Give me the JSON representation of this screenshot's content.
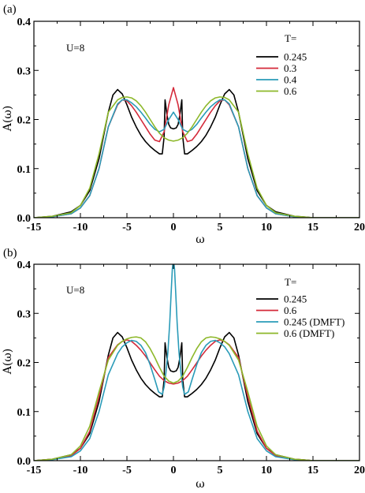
{
  "chart_data": [
    {
      "type": "line",
      "panel_label": "(a)",
      "annotation": "U=8",
      "legend_title": "T=",
      "legend_placement": "top-right",
      "xlabel": "ω",
      "ylabel": "A(ω)",
      "xlim": [
        -15,
        20
      ],
      "ylim": [
        0,
        0.4
      ],
      "x_ticks": [
        -15,
        -10,
        -5,
        0,
        5,
        10,
        15,
        20
      ],
      "y_ticks": [
        0.0,
        0.1,
        0.2,
        0.3,
        0.4
      ],
      "x_tick_labels": [
        "-15",
        "-10",
        "-5",
        "0",
        "5",
        "10",
        "15",
        "20"
      ],
      "y_tick_labels": [
        "0.0",
        "0.1",
        "0.2",
        "0.3",
        "0.4"
      ],
      "grid": false,
      "series": [
        {
          "name": "0.245",
          "color": "#000000",
          "x": [
            -15,
            -13,
            -11,
            -10,
            -9,
            -8,
            -7,
            -6.5,
            -6,
            -5.5,
            -5,
            -4.5,
            -4,
            -3.5,
            -3,
            -2.5,
            -2,
            -1.5,
            -1.2,
            -1,
            -0.9,
            -0.7,
            -0.5,
            -0.3,
            0,
            0.3,
            0.5,
            0.7,
            0.9,
            1,
            1.2,
            1.5,
            2,
            2.5,
            3,
            3.5,
            4,
            4.5,
            5,
            5.5,
            6,
            6.5,
            7,
            8,
            9,
            10,
            11,
            13,
            15,
            17,
            20
          ],
          "y": [
            0.0,
            0.003,
            0.012,
            0.025,
            0.055,
            0.12,
            0.215,
            0.25,
            0.261,
            0.252,
            0.23,
            0.205,
            0.185,
            0.168,
            0.155,
            0.145,
            0.137,
            0.13,
            0.13,
            0.165,
            0.24,
            0.21,
            0.19,
            0.183,
            0.181,
            0.183,
            0.19,
            0.21,
            0.24,
            0.165,
            0.13,
            0.13,
            0.137,
            0.145,
            0.155,
            0.168,
            0.185,
            0.205,
            0.23,
            0.252,
            0.261,
            0.25,
            0.215,
            0.12,
            0.055,
            0.025,
            0.012,
            0.003,
            0.0,
            0.0,
            0.0
          ]
        },
        {
          "name": "0.3",
          "color": "#d42a3a",
          "x": [
            -15,
            -13,
            -11,
            -10,
            -9,
            -8,
            -7,
            -6,
            -5.5,
            -5,
            -4.5,
            -4,
            -3.5,
            -3,
            -2.5,
            -2,
            -1.5,
            -1,
            -0.5,
            0,
            0.5,
            1,
            1.5,
            2,
            2.5,
            3,
            3.5,
            4,
            4.5,
            5,
            5.5,
            6,
            7,
            8,
            9,
            10,
            11,
            13,
            15,
            17,
            20
          ],
          "y": [
            0.0,
            0.002,
            0.008,
            0.02,
            0.045,
            0.1,
            0.185,
            0.23,
            0.24,
            0.238,
            0.228,
            0.215,
            0.2,
            0.185,
            0.17,
            0.158,
            0.155,
            0.175,
            0.23,
            0.265,
            0.23,
            0.175,
            0.155,
            0.158,
            0.17,
            0.185,
            0.2,
            0.215,
            0.228,
            0.238,
            0.24,
            0.23,
            0.185,
            0.1,
            0.045,
            0.02,
            0.008,
            0.002,
            0.0,
            0.0,
            0.0
          ]
        },
        {
          "name": "0.4",
          "color": "#2a9bb8",
          "x": [
            -15,
            -13,
            -11,
            -10,
            -9,
            -8,
            -7,
            -6,
            -5.5,
            -5,
            -4.5,
            -4,
            -3.5,
            -3,
            -2.5,
            -2,
            -1.5,
            -1,
            -0.5,
            0,
            0.5,
            1,
            1.5,
            2,
            2.5,
            3,
            3.5,
            4,
            4.5,
            5,
            5.5,
            6,
            7,
            8,
            9,
            10,
            11,
            13,
            15,
            17,
            20
          ],
          "y": [
            0.0,
            0.002,
            0.008,
            0.02,
            0.045,
            0.1,
            0.185,
            0.232,
            0.24,
            0.24,
            0.234,
            0.226,
            0.215,
            0.203,
            0.19,
            0.18,
            0.175,
            0.18,
            0.2,
            0.215,
            0.2,
            0.18,
            0.175,
            0.18,
            0.19,
            0.203,
            0.215,
            0.226,
            0.234,
            0.24,
            0.24,
            0.232,
            0.185,
            0.1,
            0.045,
            0.02,
            0.008,
            0.002,
            0.0,
            0.0,
            0.0
          ]
        },
        {
          "name": "0.6",
          "color": "#8db82a",
          "x": [
            -15,
            -13,
            -11,
            -10,
            -9,
            -8,
            -7,
            -6,
            -5.5,
            -5,
            -4.5,
            -4,
            -3.5,
            -3,
            -2.5,
            -2,
            -1.5,
            -1,
            -0.5,
            0,
            0.5,
            1,
            1.5,
            2,
            2.5,
            3,
            3.5,
            4,
            4.5,
            5,
            5.5,
            6,
            7,
            8,
            9,
            10,
            11,
            13,
            15,
            17,
            20
          ],
          "y": [
            0.0,
            0.003,
            0.01,
            0.025,
            0.06,
            0.13,
            0.215,
            0.24,
            0.245,
            0.246,
            0.244,
            0.238,
            0.228,
            0.215,
            0.2,
            0.185,
            0.172,
            0.163,
            0.158,
            0.156,
            0.158,
            0.163,
            0.172,
            0.185,
            0.2,
            0.215,
            0.228,
            0.238,
            0.244,
            0.246,
            0.245,
            0.24,
            0.215,
            0.13,
            0.06,
            0.025,
            0.01,
            0.003,
            0.0,
            0.0,
            0.0
          ]
        }
      ]
    },
    {
      "type": "line",
      "panel_label": "(b)",
      "annotation": "U=8",
      "legend_title": "T=",
      "legend_placement": "top-right",
      "xlabel": "ω",
      "ylabel": "A(ω)",
      "xlim": [
        -15,
        20
      ],
      "ylim": [
        0,
        0.4
      ],
      "x_ticks": [
        -15,
        -10,
        -5,
        0,
        5,
        10,
        15,
        20
      ],
      "y_ticks": [
        0.0,
        0.1,
        0.2,
        0.3,
        0.4
      ],
      "x_tick_labels": [
        "-15",
        "-10",
        "-5",
        "0",
        "5",
        "10",
        "15",
        "20"
      ],
      "y_tick_labels": [
        "0.0",
        "0.1",
        "0.2",
        "0.3",
        "0.4"
      ],
      "grid": false,
      "series": [
        {
          "name": "0.245",
          "color": "#000000",
          "x": [
            -15,
            -13,
            -11,
            -10,
            -9,
            -8,
            -7,
            -6.5,
            -6,
            -5.5,
            -5,
            -4.5,
            -4,
            -3.5,
            -3,
            -2.5,
            -2,
            -1.5,
            -1.2,
            -1,
            -0.9,
            -0.7,
            -0.5,
            -0.3,
            0,
            0.3,
            0.5,
            0.7,
            0.9,
            1,
            1.2,
            1.5,
            2,
            2.5,
            3,
            3.5,
            4,
            4.5,
            5,
            5.5,
            6,
            6.5,
            7,
            8,
            9,
            10,
            11,
            13,
            15,
            17,
            20
          ],
          "y": [
            0.0,
            0.003,
            0.012,
            0.025,
            0.055,
            0.12,
            0.215,
            0.25,
            0.261,
            0.252,
            0.23,
            0.205,
            0.185,
            0.168,
            0.155,
            0.145,
            0.137,
            0.13,
            0.13,
            0.165,
            0.24,
            0.21,
            0.19,
            0.183,
            0.181,
            0.183,
            0.19,
            0.21,
            0.24,
            0.165,
            0.13,
            0.13,
            0.137,
            0.145,
            0.155,
            0.168,
            0.185,
            0.205,
            0.23,
            0.252,
            0.261,
            0.25,
            0.215,
            0.12,
            0.055,
            0.025,
            0.012,
            0.003,
            0.0,
            0.0,
            0.0
          ]
        },
        {
          "name": "0.6",
          "color": "#d42a3a",
          "x": [
            -15,
            -13,
            -11,
            -10,
            -9,
            -8,
            -7,
            -6,
            -5.5,
            -5,
            -4.5,
            -4,
            -3.5,
            -3,
            -2.5,
            -2,
            -1.5,
            -1,
            -0.5,
            0,
            0.5,
            1,
            1.5,
            2,
            2.5,
            3,
            3.5,
            4,
            4.5,
            5,
            5.5,
            6,
            7,
            8,
            9,
            10,
            11,
            13,
            15,
            17,
            20
          ],
          "y": [
            0.0,
            0.003,
            0.01,
            0.025,
            0.06,
            0.13,
            0.21,
            0.236,
            0.243,
            0.246,
            0.243,
            0.235,
            0.225,
            0.213,
            0.199,
            0.185,
            0.172,
            0.163,
            0.158,
            0.156,
            0.158,
            0.163,
            0.172,
            0.185,
            0.199,
            0.213,
            0.225,
            0.235,
            0.243,
            0.246,
            0.243,
            0.236,
            0.21,
            0.13,
            0.06,
            0.025,
            0.01,
            0.003,
            0.0,
            0.0,
            0.0
          ]
        },
        {
          "name": "0.245 (DMFT)",
          "color": "#2a9bb8",
          "x": [
            -15,
            -13,
            -11,
            -10,
            -9,
            -8,
            -7,
            -6,
            -5.5,
            -5,
            -4.5,
            -4,
            -3.5,
            -3,
            -2.5,
            -2,
            -1.6,
            -1.2,
            -1,
            -0.8,
            -0.6,
            -0.4,
            -0.25,
            -0.12,
            0,
            0.12,
            0.25,
            0.4,
            0.6,
            0.8,
            1,
            1.2,
            1.6,
            2,
            2.5,
            3,
            3.5,
            4,
            4.5,
            5,
            5.5,
            6,
            7,
            8,
            9,
            10,
            11,
            13,
            15,
            17,
            20
          ],
          "y": [
            0.0,
            0.002,
            0.008,
            0.02,
            0.045,
            0.1,
            0.175,
            0.218,
            0.232,
            0.24,
            0.245,
            0.243,
            0.235,
            0.22,
            0.195,
            0.165,
            0.14,
            0.135,
            0.15,
            0.18,
            0.22,
            0.28,
            0.34,
            0.39,
            0.41,
            0.39,
            0.34,
            0.28,
            0.22,
            0.18,
            0.15,
            0.135,
            0.14,
            0.165,
            0.195,
            0.22,
            0.235,
            0.243,
            0.245,
            0.24,
            0.232,
            0.218,
            0.175,
            0.1,
            0.045,
            0.02,
            0.008,
            0.002,
            0.0,
            0.0,
            0.0
          ]
        },
        {
          "name": "0.6 (DMFT)",
          "color": "#8db82a",
          "x": [
            -15,
            -13,
            -11,
            -10,
            -9,
            -8,
            -7,
            -6,
            -5.5,
            -5,
            -4.5,
            -4,
            -3.5,
            -3,
            -2.5,
            -2,
            -1.5,
            -1,
            -0.5,
            0,
            0.5,
            1,
            1.5,
            2,
            2.5,
            3,
            3.5,
            4,
            4.5,
            5,
            5.5,
            6,
            7,
            8,
            9,
            10,
            11,
            13,
            15,
            17,
            20
          ],
          "y": [
            0.0,
            0.003,
            0.012,
            0.03,
            0.07,
            0.14,
            0.205,
            0.235,
            0.243,
            0.248,
            0.251,
            0.252,
            0.25,
            0.242,
            0.228,
            0.21,
            0.19,
            0.172,
            0.162,
            0.158,
            0.162,
            0.172,
            0.19,
            0.21,
            0.228,
            0.242,
            0.25,
            0.252,
            0.251,
            0.248,
            0.243,
            0.235,
            0.205,
            0.14,
            0.07,
            0.03,
            0.012,
            0.003,
            0.0,
            0.0,
            0.0
          ]
        }
      ]
    }
  ]
}
